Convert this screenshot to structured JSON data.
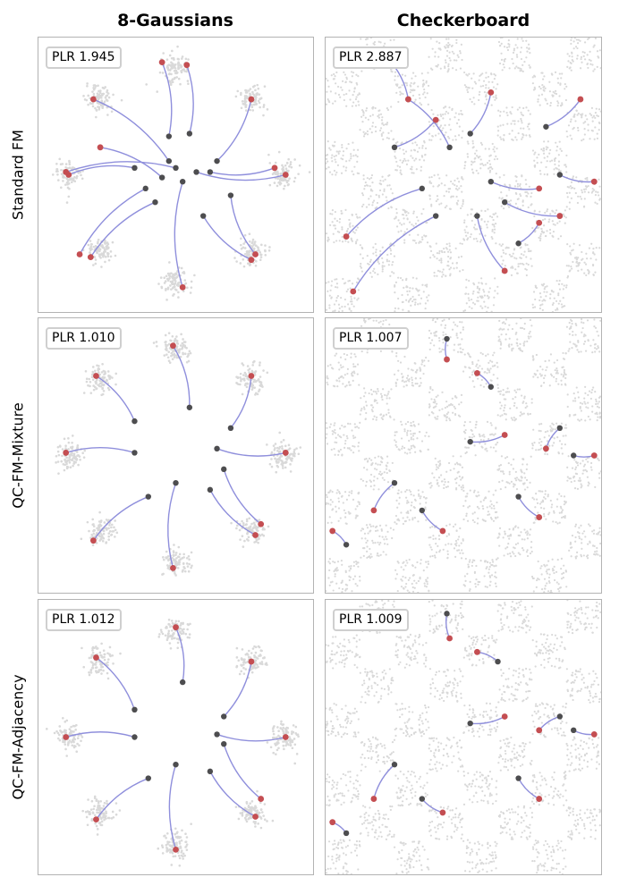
{
  "columns": [
    "8-Gaussians",
    "Checkerboard"
  ],
  "rows": [
    "Standard FM",
    "QC-FM-Mixture",
    "QC-FM-Adjacency"
  ],
  "colors": {
    "trajectory": "#8f8fdc",
    "source_point": "#4d4d4f",
    "end_point": "#c44e52",
    "background_samples": "#d9d9d9",
    "frame": "#b3b3b3"
  },
  "chart_data": [
    {
      "type": "scatter",
      "row": "Standard FM",
      "column": "8-Gaussians",
      "plr_label": "PLR 1.945",
      "plr": 1.945,
      "trajectories": [
        [
          [
            -0.1,
            -0.02
          ],
          [
            -0.55,
            0.2
          ]
        ],
        [
          [
            -0.05,
            0.1
          ],
          [
            -0.6,
            0.55
          ]
        ],
        [
          [
            0.0,
            0.05
          ],
          [
            -0.8,
            0.02
          ]
        ],
        [
          [
            -0.15,
            -0.2
          ],
          [
            -0.62,
            -0.6
          ]
        ],
        [
          [
            -0.22,
            -0.1
          ],
          [
            -0.7,
            -0.58
          ]
        ],
        [
          [
            0.05,
            -0.05
          ],
          [
            0.05,
            -0.82
          ]
        ],
        [
          [
            0.15,
            0.02
          ],
          [
            0.8,
            0.0
          ]
        ],
        [
          [
            0.3,
            0.1
          ],
          [
            0.55,
            0.55
          ]
        ],
        [
          [
            0.4,
            -0.15
          ],
          [
            0.58,
            -0.58
          ]
        ],
        [
          [
            0.2,
            -0.3
          ],
          [
            0.55,
            -0.62
          ]
        ],
        [
          [
            0.1,
            0.3
          ],
          [
            0.08,
            0.8
          ]
        ],
        [
          [
            -0.05,
            0.28
          ],
          [
            -0.1,
            0.82
          ]
        ],
        [
          [
            0.25,
            0.02
          ],
          [
            0.72,
            0.05
          ]
        ],
        [
          [
            -0.3,
            0.05
          ],
          [
            -0.78,
            0.0
          ]
        ]
      ]
    },
    {
      "type": "scatter",
      "row": "Standard FM",
      "column": "Checkerboard",
      "plr_label": "PLR 2.887",
      "plr": 2.887,
      "trajectories": [
        [
          [
            -0.4,
            0.55
          ],
          [
            -0.55,
            0.85
          ]
        ],
        [
          [
            0.6,
            0.35
          ],
          [
            0.85,
            0.55
          ]
        ],
        [
          [
            -0.1,
            0.2
          ],
          [
            -0.4,
            0.55
          ]
        ],
        [
          [
            0.2,
            -0.05
          ],
          [
            0.55,
            -0.1
          ]
        ],
        [
          [
            0.3,
            -0.2
          ],
          [
            0.7,
            -0.3
          ]
        ],
        [
          [
            -0.3,
            -0.1
          ],
          [
            -0.85,
            -0.45
          ]
        ],
        [
          [
            -0.2,
            -0.3
          ],
          [
            -0.8,
            -0.85
          ]
        ],
        [
          [
            0.1,
            -0.3
          ],
          [
            0.3,
            -0.7
          ]
        ],
        [
          [
            0.7,
            0.0
          ],
          [
            0.95,
            -0.05
          ]
        ],
        [
          [
            0.05,
            0.3
          ],
          [
            0.2,
            0.6
          ]
        ],
        [
          [
            -0.5,
            0.2
          ],
          [
            -0.2,
            0.4
          ]
        ],
        [
          [
            0.4,
            -0.5
          ],
          [
            0.55,
            -0.35
          ]
        ]
      ]
    },
    {
      "type": "scatter",
      "row": "QC-FM-Mixture",
      "column": "8-Gaussians",
      "plr_label": "PLR 1.010",
      "plr": 1.01,
      "trajectories": [
        [
          [
            -0.3,
            0.25
          ],
          [
            -0.58,
            0.58
          ]
        ],
        [
          [
            0.1,
            0.35
          ],
          [
            -0.02,
            0.8
          ]
        ],
        [
          [
            0.4,
            0.2
          ],
          [
            0.55,
            0.58
          ]
        ],
        [
          [
            0.3,
            0.05
          ],
          [
            0.8,
            0.02
          ]
        ],
        [
          [
            -0.3,
            0.02
          ],
          [
            -0.8,
            0.02
          ]
        ],
        [
          [
            -0.2,
            -0.3
          ],
          [
            -0.6,
            -0.62
          ]
        ],
        [
          [
            0.25,
            -0.25
          ],
          [
            0.58,
            -0.58
          ]
        ],
        [
          [
            0.0,
            -0.2
          ],
          [
            -0.02,
            -0.82
          ]
        ],
        [
          [
            0.35,
            -0.1
          ],
          [
            0.62,
            -0.5
          ]
        ]
      ]
    },
    {
      "type": "scatter",
      "row": "QC-FM-Mixture",
      "column": "Checkerboard",
      "plr_label": "PLR 1.007",
      "plr": 1.007,
      "trajectories": [
        [
          [
            -0.12,
            0.85
          ],
          [
            -0.12,
            0.7
          ]
        ],
        [
          [
            0.7,
            0.2
          ],
          [
            0.6,
            0.05
          ]
        ],
        [
          [
            -0.5,
            -0.2
          ],
          [
            -0.65,
            -0.4
          ]
        ],
        [
          [
            0.05,
            0.1
          ],
          [
            0.3,
            0.15
          ]
        ],
        [
          [
            -0.3,
            -0.4
          ],
          [
            -0.15,
            -0.55
          ]
        ],
        [
          [
            0.4,
            -0.3
          ],
          [
            0.55,
            -0.45
          ]
        ],
        [
          [
            0.8,
            0.0
          ],
          [
            0.95,
            0.0
          ]
        ],
        [
          [
            -0.85,
            -0.65
          ],
          [
            -0.95,
            -0.55
          ]
        ],
        [
          [
            0.2,
            0.5
          ],
          [
            0.1,
            0.6
          ]
        ]
      ]
    },
    {
      "type": "scatter",
      "row": "QC-FM-Adjacency",
      "column": "8-Gaussians",
      "plr_label": "PLR 1.012",
      "plr": 1.012,
      "trajectories": [
        [
          [
            -0.3,
            0.2
          ],
          [
            -0.58,
            0.58
          ]
        ],
        [
          [
            0.05,
            0.4
          ],
          [
            0.0,
            0.8
          ]
        ],
        [
          [
            0.35,
            0.15
          ],
          [
            0.55,
            0.55
          ]
        ],
        [
          [
            0.3,
            0.02
          ],
          [
            0.8,
            0.0
          ]
        ],
        [
          [
            -0.3,
            0.0
          ],
          [
            -0.8,
            0.0
          ]
        ],
        [
          [
            -0.2,
            -0.3
          ],
          [
            -0.58,
            -0.6
          ]
        ],
        [
          [
            0.25,
            -0.25
          ],
          [
            0.58,
            -0.58
          ]
        ],
        [
          [
            0.0,
            -0.2
          ],
          [
            0.0,
            -0.82
          ]
        ],
        [
          [
            0.35,
            -0.05
          ],
          [
            0.62,
            -0.45
          ]
        ]
      ]
    },
    {
      "type": "scatter",
      "row": "QC-FM-Adjacency",
      "column": "Checkerboard",
      "plr_label": "PLR 1.009",
      "plr": 1.009,
      "trajectories": [
        [
          [
            -0.12,
            0.9
          ],
          [
            -0.1,
            0.72
          ]
        ],
        [
          [
            0.7,
            0.15
          ],
          [
            0.55,
            0.05
          ]
        ],
        [
          [
            -0.5,
            -0.2
          ],
          [
            -0.65,
            -0.45
          ]
        ],
        [
          [
            0.05,
            0.1
          ],
          [
            0.3,
            0.15
          ]
        ],
        [
          [
            -0.3,
            -0.45
          ],
          [
            -0.15,
            -0.55
          ]
        ],
        [
          [
            0.4,
            -0.3
          ],
          [
            0.55,
            -0.45
          ]
        ],
        [
          [
            0.8,
            0.05
          ],
          [
            0.95,
            0.02
          ]
        ],
        [
          [
            -0.85,
            -0.7
          ],
          [
            -0.95,
            -0.62
          ]
        ],
        [
          [
            0.25,
            0.55
          ],
          [
            0.1,
            0.62
          ]
        ]
      ]
    }
  ]
}
